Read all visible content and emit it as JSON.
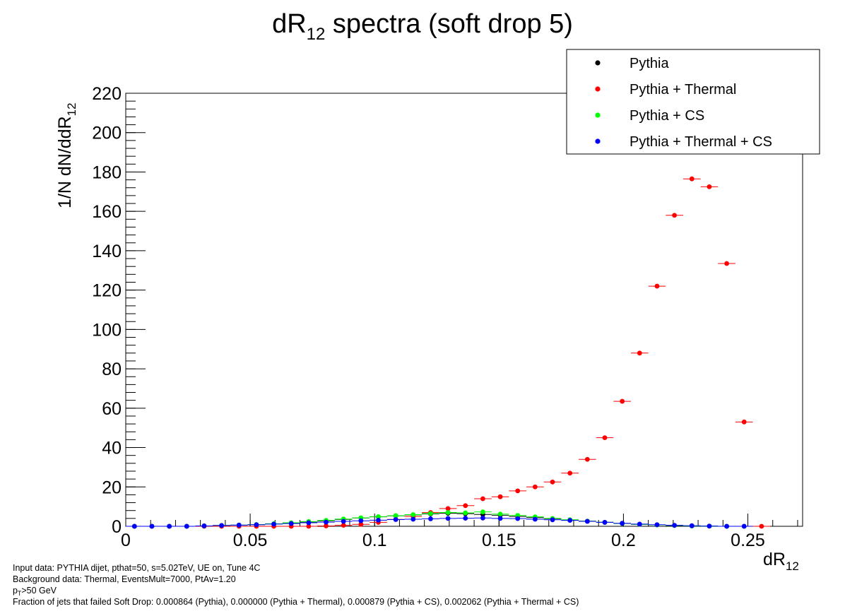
{
  "chart_data": {
    "type": "scatter",
    "title": "dR",
    "title_sub": "12",
    "title_suffix": " spectra (soft drop 5)",
    "xlabel": "dR",
    "xlabel_sub": "12",
    "ylabel": "1/N dN/ddR",
    "ylabel_sub": "12",
    "xlim": [
      0,
      0.272
    ],
    "ylim": [
      0,
      220
    ],
    "xticks": [
      0,
      0.05,
      0.1,
      0.15,
      0.2,
      0.25
    ],
    "xtick_labels": [
      "0",
      "0.05",
      "0.1",
      "0.15",
      "0.2",
      "0.25"
    ],
    "yticks": [
      0,
      20,
      40,
      60,
      80,
      100,
      120,
      140,
      160,
      180,
      200,
      220
    ],
    "ytick_labels": [
      "0",
      "20",
      "40",
      "60",
      "80",
      "100",
      "120",
      "140",
      "160",
      "180",
      "200",
      "220"
    ],
    "bin_width": 0.007,
    "legend_position": "top-right",
    "series": [
      {
        "name": "Pythia",
        "color": "#000000",
        "x": [
          0.0035,
          0.0105,
          0.0175,
          0.0245,
          0.0315,
          0.0385,
          0.0455,
          0.0525,
          0.0595,
          0.0665,
          0.0735,
          0.0805,
          0.0875,
          0.0945,
          0.1015,
          0.1085,
          0.1155,
          0.1225,
          0.1295,
          0.1365,
          0.1435,
          0.1505,
          0.1575,
          0.1645,
          0.1715,
          0.1785,
          0.1855,
          0.1925,
          0.1995,
          0.2065,
          0.2135,
          0.2205,
          0.2275,
          0.2345,
          0.2415,
          0.2485
        ],
        "y": [
          0,
          0,
          0,
          0,
          0.2,
          0.4,
          0.6,
          0.8,
          1.2,
          1.6,
          2.2,
          2.8,
          3.5,
          4.2,
          4.8,
          5.3,
          5.8,
          6.3,
          6.6,
          6.4,
          6.0,
          5.6,
          5.0,
          4.4,
          3.8,
          3.2,
          2.6,
          2.0,
          1.5,
          1.0,
          0.7,
          0.4,
          0.2,
          0.1,
          0,
          0
        ]
      },
      {
        "name": "Pythia + Thermal",
        "color": "#ff0000",
        "x": [
          0.0035,
          0.0105,
          0.0175,
          0.0245,
          0.0315,
          0.0385,
          0.0455,
          0.0525,
          0.0595,
          0.0665,
          0.0735,
          0.0805,
          0.0875,
          0.0945,
          0.1015,
          0.1085,
          0.1155,
          0.1225,
          0.1295,
          0.1365,
          0.1435,
          0.1505,
          0.1575,
          0.1645,
          0.1715,
          0.1785,
          0.1855,
          0.1925,
          0.1995,
          0.2065,
          0.2135,
          0.2205,
          0.2275,
          0.2345,
          0.2415,
          0.2485,
          0.2555
        ],
        "y": [
          0,
          0,
          0,
          0,
          0,
          0,
          0,
          0,
          0,
          0,
          0,
          0.2,
          0.5,
          1,
          2,
          3.5,
          5,
          7,
          9,
          10.5,
          14,
          15,
          18,
          20,
          22.5,
          27,
          34,
          45,
          63.5,
          88,
          122,
          158,
          176.5,
          172.5,
          133.5,
          53,
          0
        ]
      },
      {
        "name": "Pythia + CS",
        "color": "#00ff00",
        "x": [
          0.0035,
          0.0105,
          0.0175,
          0.0245,
          0.0315,
          0.0385,
          0.0455,
          0.0525,
          0.0595,
          0.0665,
          0.0735,
          0.0805,
          0.0875,
          0.0945,
          0.1015,
          0.1085,
          0.1155,
          0.1225,
          0.1295,
          0.1365,
          0.1435,
          0.1505,
          0.1575,
          0.1645,
          0.1715,
          0.1785,
          0.1855,
          0.1925,
          0.1995,
          0.2065,
          0.2135,
          0.2205,
          0.2275,
          0.2345,
          0.2415,
          0.2485
        ],
        "y": [
          0,
          0,
          0,
          0,
          0.2,
          0.4,
          0.6,
          0.9,
          1.3,
          1.8,
          2.4,
          3.0,
          3.7,
          4.3,
          4.9,
          5.4,
          5.9,
          6.5,
          7.0,
          6.8,
          7.3,
          6.2,
          5.5,
          4.8,
          4.0,
          3.3,
          2.6,
          2.0,
          1.4,
          1.0,
          0.7,
          0.4,
          0.2,
          0.1,
          0,
          0
        ]
      },
      {
        "name": "Pythia + Thermal + CS",
        "color": "#0000ff",
        "x": [
          0.0035,
          0.0105,
          0.0175,
          0.0245,
          0.0315,
          0.0385,
          0.0455,
          0.0525,
          0.0595,
          0.0665,
          0.0735,
          0.0805,
          0.0875,
          0.0945,
          0.1015,
          0.1085,
          0.1155,
          0.1225,
          0.1295,
          0.1365,
          0.1435,
          0.1505,
          0.1575,
          0.1645,
          0.1715,
          0.1785,
          0.1855,
          0.1925,
          0.1995,
          0.2065,
          0.2135,
          0.2205,
          0.2275,
          0.2345,
          0.2415,
          0.2485
        ],
        "y": [
          0,
          0,
          0,
          0,
          0.2,
          0.4,
          0.6,
          0.8,
          1.1,
          1.4,
          1.8,
          2.1,
          2.5,
          2.8,
          3.1,
          3.4,
          3.6,
          3.8,
          4.0,
          4.1,
          4.2,
          4.0,
          3.9,
          3.6,
          3.3,
          3.0,
          2.5,
          2.0,
          1.5,
          1.1,
          0.8,
          0.5,
          0.3,
          0.1,
          0,
          0
        ]
      }
    ]
  },
  "notes": {
    "line1": "Input data: PYTHIA dijet, pthat=50, s=5.02TeV, UE on, Tune 4C",
    "line2": "Background data: Thermal, EventsMult=7000, PtAv=1.20",
    "line3_p": "p",
    "line3_sub": "T",
    "line3_rest": ">50 GeV",
    "line4": "Fraction of jets that failed Soft Drop: 0.000864 (Pythia), 0.000000 (Pythia + Thermal),  0.000879 (Pythia + CS), 0.002062 (Pythia + Thermal + CS)"
  }
}
